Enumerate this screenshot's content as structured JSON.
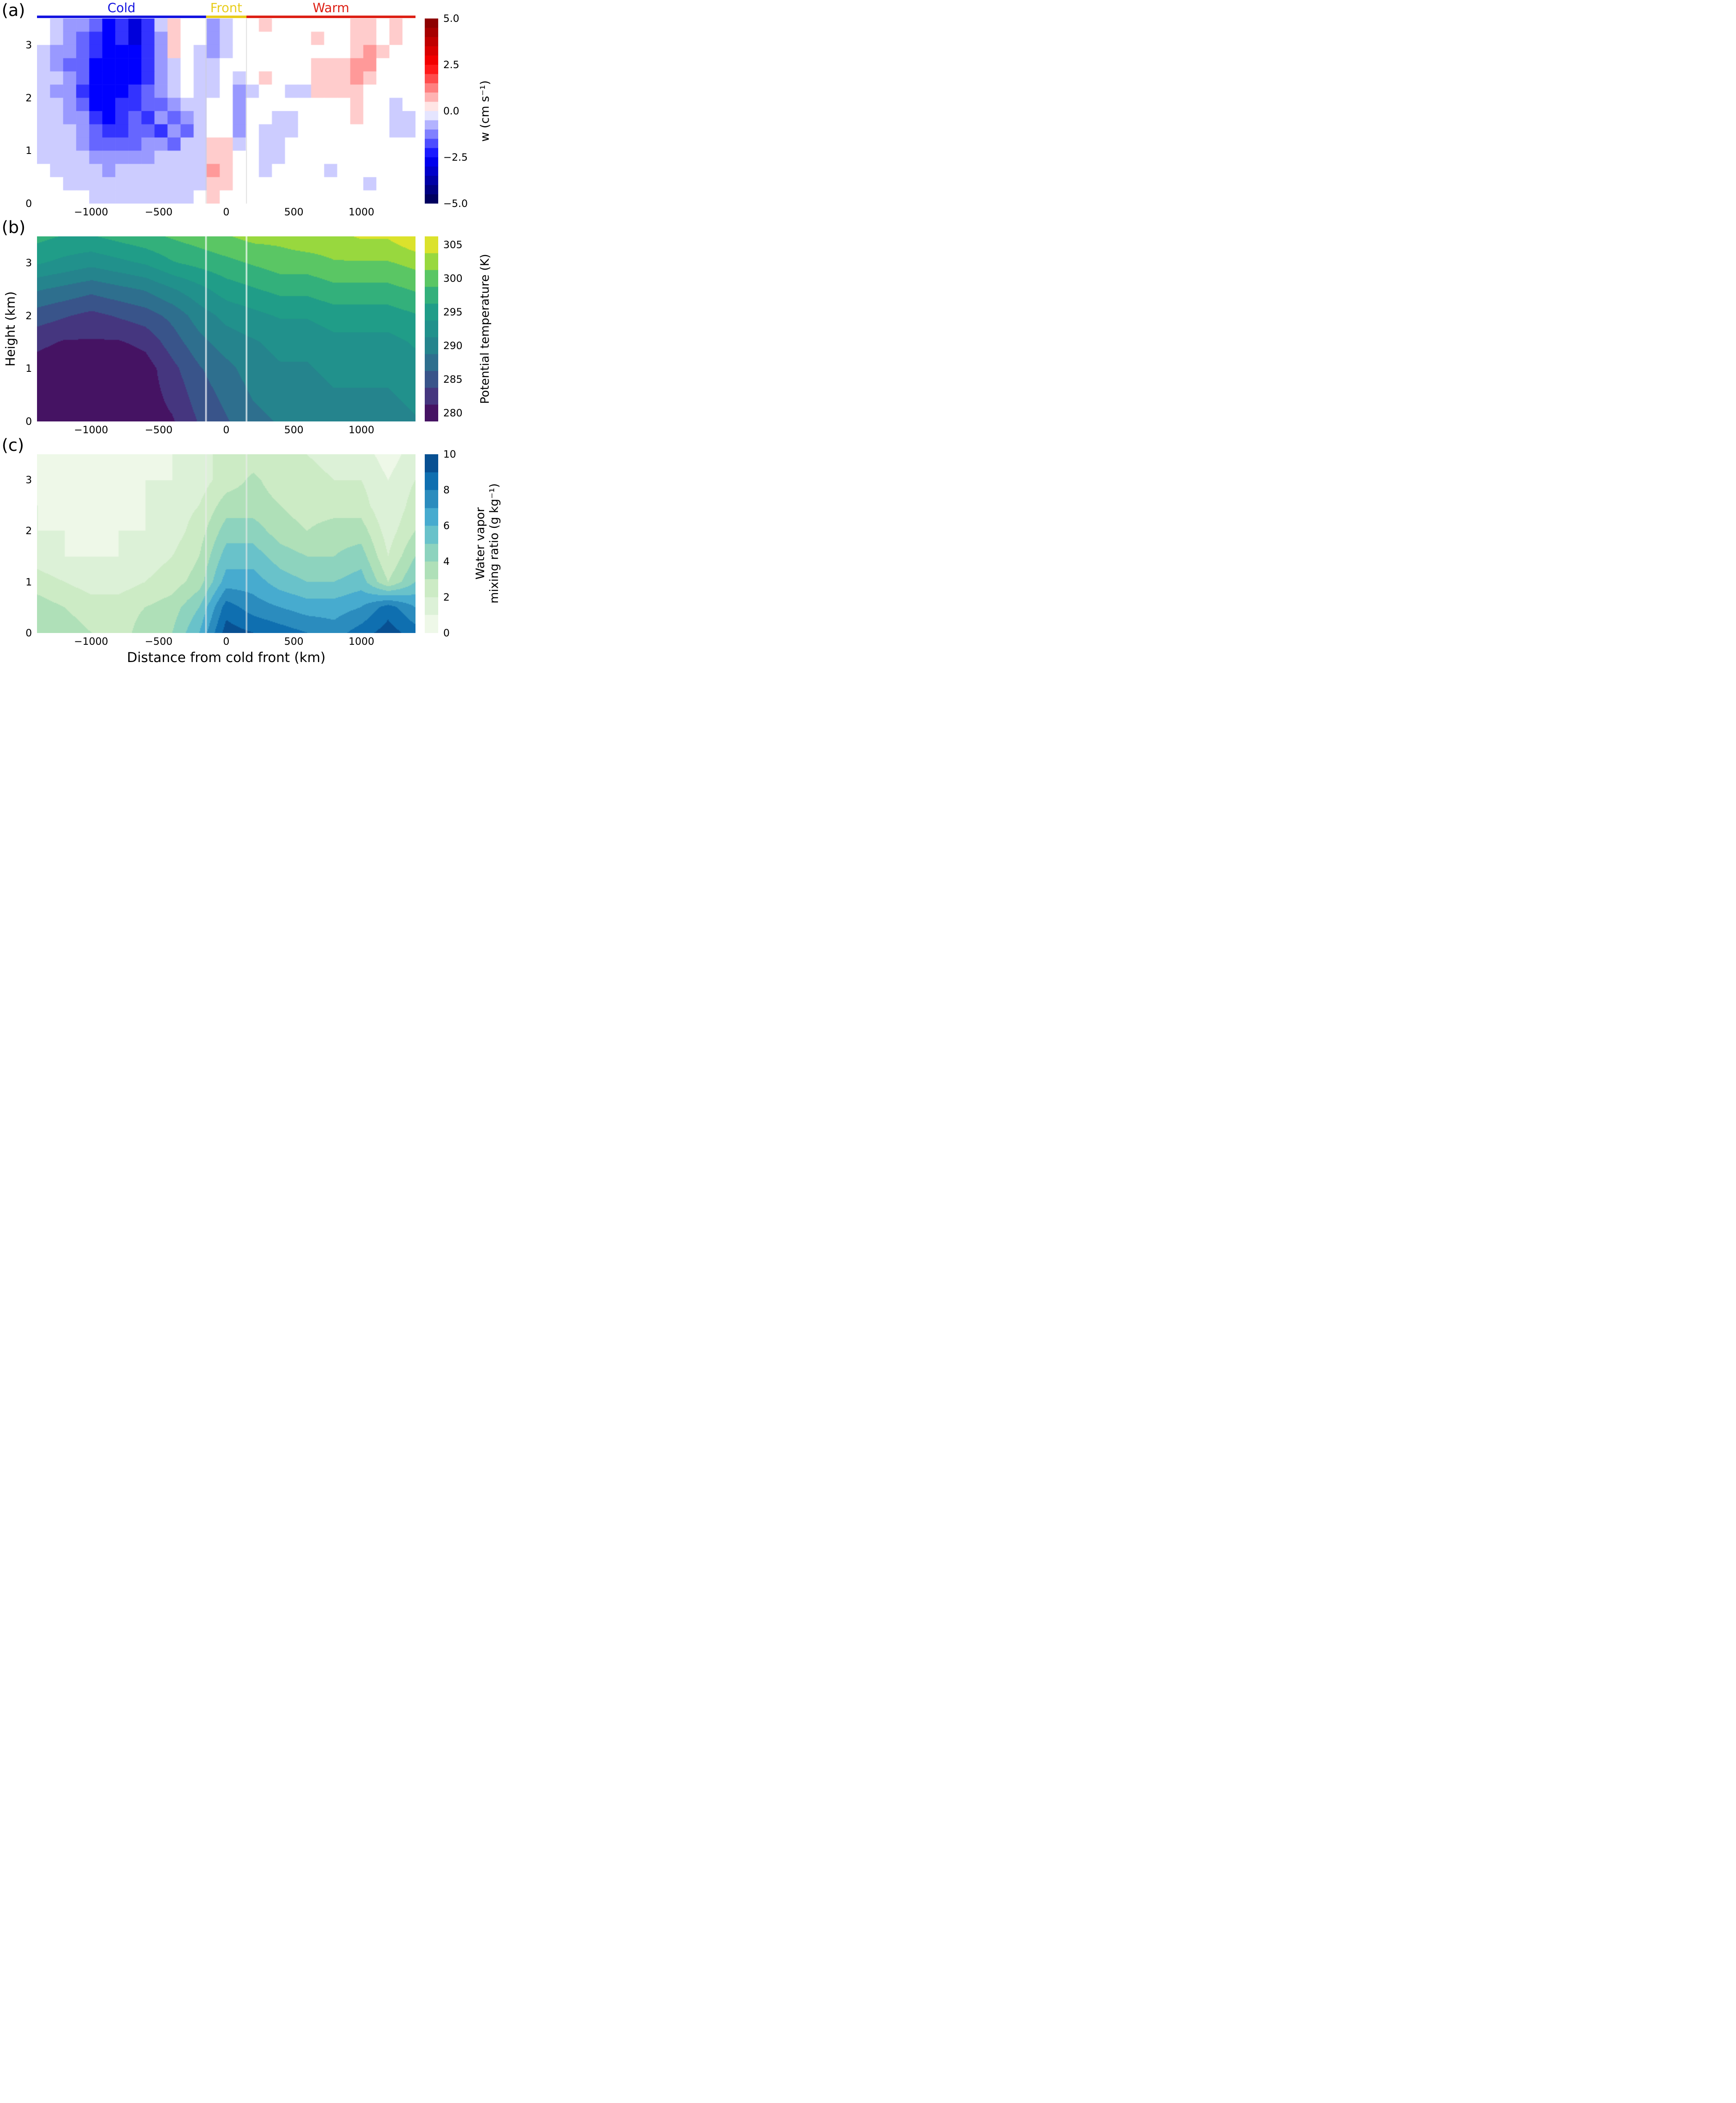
{
  "figure": {
    "panel_letters": [
      "(a)",
      "(b)",
      "(c)"
    ],
    "annotations": [
      {
        "label": "Cold",
        "color": "#1414e0",
        "span_km": [
          -1400,
          -150
        ]
      },
      {
        "label": "Front",
        "color": "#e8cd1d",
        "span_km": [
          -150,
          150
        ]
      },
      {
        "label": "Warm",
        "color": "#dd2015",
        "span_km": [
          150,
          1400
        ]
      }
    ],
    "colorbars": [
      {
        "label": "w (cm s⁻¹)"
      },
      {
        "label": "Potential temperature (K)"
      },
      {
        "label_line1": "Water vapor",
        "label_line2": "mixing ratio (g kg⁻¹)"
      }
    ]
  },
  "axes": {
    "x_label": "Distance from cold front (km)",
    "y_label": "Height (km)",
    "x_tick_labels": [
      "−1000",
      "−500",
      "0",
      "500",
      "1000"
    ],
    "x_tick_values": [
      -1000,
      -500,
      0,
      500,
      1000
    ],
    "y_tick_labels": [
      "0",
      "1",
      "2",
      "3"
    ],
    "y_tick_values": [
      0,
      1,
      2,
      3
    ]
  },
  "colormaps": {
    "seismic": {
      "stops": [
        [
          0,
          "#00004d"
        ],
        [
          0.25,
          "#0000ff"
        ],
        [
          0.5,
          "#ffffff"
        ],
        [
          0.75,
          "#ff0000"
        ],
        [
          1,
          "#800000"
        ]
      ]
    },
    "viridis": {
      "stops": [
        [
          0,
          "#440154"
        ],
        [
          0.125,
          "#46327e"
        ],
        [
          0.25,
          "#365c8d"
        ],
        [
          0.375,
          "#277f8e"
        ],
        [
          0.5,
          "#21918c"
        ],
        [
          0.625,
          "#1fa187"
        ],
        [
          0.75,
          "#4ac16d"
        ],
        [
          0.875,
          "#a0da39"
        ],
        [
          1,
          "#fde725"
        ]
      ]
    },
    "gnbu": {
      "stops": [
        [
          0,
          "#f7fcf0"
        ],
        [
          0.125,
          "#e0f3db"
        ],
        [
          0.25,
          "#ccebc5"
        ],
        [
          0.375,
          "#a8ddb5"
        ],
        [
          0.5,
          "#7bccc4"
        ],
        [
          0.625,
          "#4eb3d3"
        ],
        [
          0.75,
          "#2b8cbe"
        ],
        [
          0.875,
          "#0868ac"
        ],
        [
          1,
          "#084081"
        ]
      ]
    }
  },
  "chart_data": [
    {
      "type": "heatmap",
      "panel": "a",
      "variable": "vertical velocity w",
      "units": "cm s⁻¹",
      "colormap": "seismic",
      "clim": [
        -5,
        5
      ],
      "cbar_bands": 20,
      "colorbar_ticks": {
        "labels": [
          "5.0",
          "2.5",
          "0.0",
          "−2.5",
          "−5.0"
        ],
        "values": [
          5,
          2.5,
          0,
          -2.5,
          -5
        ]
      },
      "x_km": {
        "min": -1400,
        "max": 1400,
        "ncols": 29
      },
      "z_km": {
        "min": 0,
        "max": 3.5,
        "nrows": 14
      },
      "front_lines_km": [
        -150,
        150
      ],
      "front_line_color": "rgba(205,205,205,0.8)",
      "values_rows_top_to_bottom": [
        [
          0,
          -0.5,
          -1,
          -1,
          -1.5,
          -2.5,
          -2,
          -3,
          -2,
          -0.5,
          0.5,
          0,
          0,
          -1,
          -0.5,
          0,
          0,
          0.5,
          0,
          0,
          0,
          0,
          0,
          0,
          0.5,
          0.5,
          0,
          0.5,
          0
        ],
        [
          0,
          -0.5,
          -1,
          -1.5,
          -2,
          -2.5,
          -2,
          -3,
          -2,
          -1,
          0.5,
          0,
          0,
          -1,
          -0.5,
          0,
          0,
          0,
          0,
          0,
          0,
          0.5,
          0,
          0,
          0.5,
          0.5,
          0,
          0.5,
          0
        ],
        [
          -0.5,
          -1,
          -1,
          -1.5,
          -2,
          -2.5,
          -2.5,
          -2.5,
          -2,
          -1,
          0.5,
          0,
          -0.5,
          -1,
          -0.5,
          0,
          0,
          0,
          0,
          0,
          0,
          0,
          0,
          0,
          0.5,
          1,
          0.5,
          0,
          0
        ],
        [
          -0.5,
          -1,
          -1.5,
          -1.5,
          -2.5,
          -2.5,
          -2.5,
          -2.5,
          -2,
          -1,
          -0.5,
          0,
          -0.5,
          -0.5,
          0,
          0,
          0,
          0,
          0,
          0,
          0,
          0.5,
          0.5,
          0.5,
          1,
          1,
          0,
          0,
          0
        ],
        [
          -0.5,
          -0.5,
          -1,
          -1.5,
          -2.5,
          -2.5,
          -2.5,
          -2.5,
          -2,
          -1,
          -0.5,
          0,
          -0.5,
          -0.5,
          0,
          -0.5,
          0,
          0.5,
          0,
          0,
          0,
          0.5,
          0.5,
          0.5,
          1,
          0.5,
          0,
          0,
          0
        ],
        [
          -0.5,
          -1,
          -1,
          -2,
          -2.5,
          -2.5,
          -2.5,
          -2,
          -1.5,
          -1,
          -0.5,
          0,
          -0.5,
          -0.5,
          0,
          -1,
          -0.5,
          0,
          0,
          -0.5,
          -0.5,
          0.5,
          0.5,
          0.5,
          0.5,
          0,
          0,
          0,
          0
        ],
        [
          -0.5,
          -0.5,
          -1,
          -1.5,
          -2.5,
          -2.5,
          -2,
          -2,
          -1.5,
          -1.5,
          -1,
          -0.5,
          -0.5,
          0,
          0,
          -1,
          0,
          0,
          0,
          0,
          0,
          0,
          0,
          0,
          0.5,
          0,
          0,
          -0.5,
          0
        ],
        [
          -0.5,
          -0.5,
          -1,
          -1,
          -2,
          -2.5,
          -2,
          -1.5,
          -2,
          -1,
          -1.5,
          -1,
          -0.5,
          0,
          0,
          -1,
          0,
          0,
          -0.5,
          -0.5,
          0,
          0,
          0,
          0,
          0.5,
          0,
          0,
          -0.5,
          -0.5
        ],
        [
          -0.5,
          -0.5,
          -0.5,
          -1,
          -1.5,
          -2,
          -2,
          -1.5,
          -1.5,
          -2,
          -1,
          -1.5,
          -0.5,
          0,
          0,
          -1,
          0,
          -0.5,
          -0.5,
          -0.5,
          0,
          0,
          0,
          0,
          0,
          0,
          0,
          -0.5,
          -0.5
        ],
        [
          -0.5,
          -0.5,
          -0.5,
          -1,
          -1.5,
          -1.5,
          -1.5,
          -1.5,
          -1,
          -1,
          -1.5,
          -0.5,
          -0.5,
          0.5,
          0.5,
          -0.5,
          0,
          -0.5,
          -0.5,
          0,
          0,
          0,
          0,
          0,
          0,
          0,
          0,
          0,
          0
        ],
        [
          -0.5,
          -0.5,
          -0.5,
          -0.5,
          -1,
          -1,
          -1,
          -1,
          -1,
          -0.5,
          -0.5,
          -0.5,
          -0.5,
          0.5,
          0.5,
          0,
          0,
          -0.5,
          -0.5,
          0,
          0,
          0,
          0,
          0,
          0,
          0,
          0,
          0,
          0
        ],
        [
          0,
          -0.5,
          -0.5,
          -0.5,
          -0.5,
          -1,
          -0.5,
          -0.5,
          -0.5,
          -0.5,
          -0.5,
          -0.5,
          -0.5,
          1,
          0.5,
          0,
          0,
          -0.5,
          0,
          0,
          0,
          0,
          -0.5,
          0,
          0,
          0,
          0,
          0,
          0
        ],
        [
          0,
          0,
          -0.5,
          -0.5,
          -0.5,
          -0.5,
          -0.5,
          -0.5,
          -0.5,
          -0.5,
          -0.5,
          -0.5,
          -0.5,
          0.5,
          0.5,
          0,
          0,
          0,
          0,
          0,
          0,
          0,
          0,
          0,
          0,
          -0.5,
          0,
          0,
          0
        ],
        [
          0,
          0,
          0,
          0,
          -0.5,
          -0.5,
          -0.5,
          -0.5,
          -0.5,
          -0.5,
          -0.5,
          -0.5,
          0,
          0.5,
          0,
          0,
          0,
          0,
          0,
          0,
          0,
          0,
          0,
          0,
          0,
          0,
          0,
          0,
          0
        ]
      ]
    },
    {
      "type": "filled_contour",
      "panel": "b",
      "variable": "Potential temperature",
      "units": "K",
      "colormap": "viridis",
      "levels": {
        "start": 278.75,
        "step": 2.5,
        "count": 11
      },
      "colorbar_ticks": {
        "labels": [
          "305",
          "300",
          "295",
          "290",
          "285",
          "280"
        ],
        "values": [
          305,
          300,
          295,
          290,
          285,
          280
        ]
      },
      "x_km": {
        "min": -1400,
        "max": 1400,
        "ncols": 15
      },
      "z_km": {
        "min": 0,
        "max": 3.5,
        "nrows": 8
      },
      "front_lines_km": [
        -150,
        150
      ],
      "front_line_color": "rgba(255,255,255,0.9)",
      "values_rows_top_to_bottom": [
        [
          297,
          296,
          296,
          297,
          298,
          299,
          300,
          301,
          302,
          302,
          303,
          303,
          304,
          304,
          306
        ],
        [
          294,
          293,
          292,
          293,
          294,
          296,
          297,
          298,
          299,
          300,
          300,
          301,
          301,
          301,
          302
        ],
        [
          289,
          288,
          287,
          288,
          289,
          291,
          293,
          295,
          296,
          297,
          297,
          298,
          298,
          298,
          299
        ],
        [
          285,
          284,
          283,
          284,
          285,
          287,
          290,
          292,
          293,
          294,
          294,
          295,
          295,
          295,
          296
        ],
        [
          282,
          281,
          281,
          281,
          282,
          285,
          288,
          290,
          291,
          292,
          292,
          293,
          293,
          293,
          294
        ],
        [
          280,
          279,
          279,
          279,
          280,
          283,
          286,
          288,
          290,
          291,
          291,
          292,
          292,
          292,
          293
        ],
        [
          279,
          279,
          279,
          279,
          280,
          282,
          285,
          287,
          289,
          290,
          290,
          291,
          291,
          291,
          292
        ],
        [
          279,
          279,
          279,
          279,
          280,
          281,
          284,
          286,
          288,
          289,
          289,
          290,
          290,
          290,
          291
        ]
      ]
    },
    {
      "type": "filled_contour",
      "panel": "c",
      "variable": "Water vapor mixing ratio",
      "units": "g kg⁻¹",
      "colormap": "gnbu",
      "levels": {
        "start": 0,
        "step": 1,
        "count": 10
      },
      "colorbar_ticks": {
        "labels": [
          "10",
          "8",
          "6",
          "4",
          "2",
          "0"
        ],
        "values": [
          10,
          8,
          6,
          4,
          2,
          0
        ]
      },
      "x_km": {
        "min": -1400,
        "max": 1400,
        "ncols": 15
      },
      "z_km": {
        "min": 0,
        "max": 3.5,
        "nrows": 8
      },
      "front_lines_km": [
        -150,
        150
      ],
      "front_line_color": "rgba(235,235,235,0.8)",
      "values_rows_top_to_bottom": [
        [
          0.5,
          0.5,
          0.5,
          0.5,
          0.5,
          1,
          1.5,
          2.5,
          2.5,
          2.5,
          2,
          1.5,
          1.5,
          0.5,
          1.5
        ],
        [
          0.5,
          0.5,
          0.5,
          0.5,
          1,
          1,
          1.5,
          2.5,
          3.2,
          2.5,
          2.5,
          2,
          2,
          1,
          2
        ],
        [
          1,
          0.5,
          0.5,
          0.5,
          1,
          1.5,
          2,
          3.5,
          3.5,
          3,
          2.5,
          2.5,
          2.5,
          1,
          2.5
        ],
        [
          1,
          1,
          0.5,
          1,
          1,
          1.5,
          2.5,
          4.5,
          4.5,
          3.5,
          3,
          3.5,
          3.5,
          1.5,
          3
        ],
        [
          1.5,
          1,
          1,
          1,
          1.5,
          2,
          3,
          5.5,
          5.5,
          4.5,
          4,
          4,
          4.5,
          2,
          4
        ],
        [
          2.5,
          2,
          1.5,
          1.5,
          2,
          2.5,
          3.5,
          6.5,
          6.5,
          5.5,
          5,
          5,
          5.5,
          3,
          5
        ],
        [
          3.5,
          3,
          2.5,
          2.5,
          3,
          3.5,
          5,
          8.5,
          7.5,
          7,
          6.5,
          6.5,
          7,
          8.5,
          7
        ],
        [
          3.5,
          3.5,
          3,
          2.5,
          3.5,
          4,
          6,
          9.5,
          9,
          8.5,
          8,
          7.5,
          8.5,
          9.5,
          8.5
        ]
      ]
    }
  ]
}
